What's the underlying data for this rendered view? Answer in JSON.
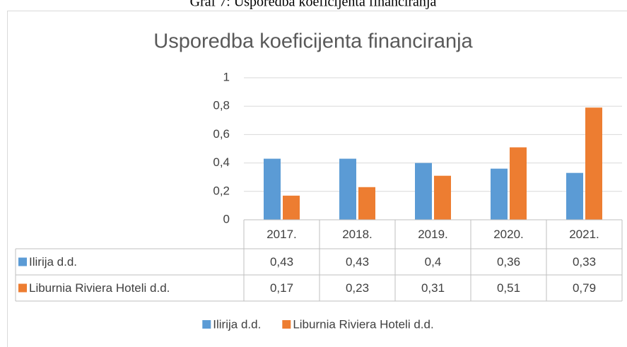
{
  "caption": "Graf 7: Usporedba koeficijenta financiranja",
  "chart_data": {
    "type": "bar",
    "title": "Usporedba koeficijenta financiranja",
    "categories": [
      "2017.",
      "2018.",
      "2019.",
      "2020.",
      "2021."
    ],
    "series": [
      {
        "name": "Ilirija d.d.",
        "color": "#5b9bd5",
        "values": [
          0.43,
          0.43,
          0.4,
          0.36,
          0.33
        ],
        "value_labels": [
          "0,43",
          "0,43",
          "0,4",
          "0,36",
          "0,33"
        ]
      },
      {
        "name": "Liburnia Riviera Hoteli d.d.",
        "color": "#ed7d31",
        "values": [
          0.17,
          0.23,
          0.31,
          0.51,
          0.79
        ],
        "value_labels": [
          "0,17",
          "0,23",
          "0,31",
          "0,51",
          "0,79"
        ]
      }
    ],
    "ylim": [
      0,
      1
    ],
    "yticks": [
      0,
      {
        "value": 0.2,
        "label": "0,2"
      },
      {
        "value": 0.4,
        "label": "0,4"
      },
      {
        "value": 0.6,
        "label": "0,6"
      },
      {
        "value": 0.8,
        "label": "0,8"
      },
      1
    ],
    "grid": true,
    "legend": "bottom",
    "data_table": true
  }
}
